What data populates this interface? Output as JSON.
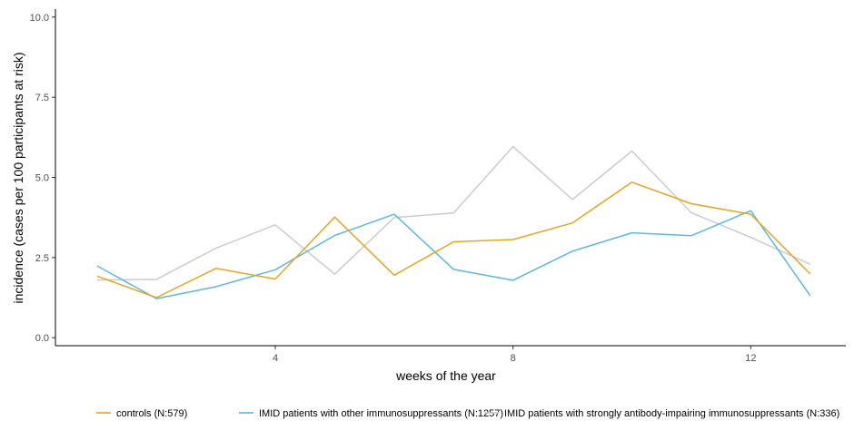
{
  "chart_data": {
    "type": "line",
    "xlabel": "weeks of the year",
    "ylabel": "incidence (cases per 100 participants at risk)",
    "xlim": [
      0.3,
      13.6
    ],
    "ylim": [
      -0.25,
      10.25
    ],
    "x_ticks": [
      4,
      8,
      12
    ],
    "x_tick_labels": [
      "4",
      "8",
      "12"
    ],
    "y_ticks": [
      0.0,
      2.5,
      5.0,
      7.5,
      10.0
    ],
    "y_tick_labels": [
      "0.0",
      "2.5",
      "5.0",
      "7.5",
      "10.0"
    ],
    "grid": false,
    "legend_position": "bottom",
    "x": [
      1,
      2,
      3,
      4,
      5,
      6,
      7,
      8,
      9,
      10,
      11,
      12,
      13
    ],
    "series": [
      {
        "name": "controls (N:579)",
        "color": "#E6A520",
        "values": [
          1.92,
          1.25,
          2.16,
          1.83,
          3.76,
          1.95,
          2.99,
          3.06,
          3.58,
          4.85,
          4.18,
          3.85,
          1.99
        ]
      },
      {
        "name": "IMID patients with other immunosuppressants (N:1257)",
        "color": "#5BB8E0",
        "values": [
          2.24,
          1.22,
          1.59,
          2.12,
          3.19,
          3.85,
          2.13,
          1.79,
          2.7,
          3.27,
          3.18,
          3.96,
          1.31
        ]
      },
      {
        "name": "IMID patients with strongly antibody-impairing immunosuppressants (N:336)",
        "color": "#CCCCCC",
        "values": [
          1.8,
          1.82,
          2.79,
          3.52,
          1.98,
          3.75,
          3.89,
          5.96,
          4.31,
          5.82,
          3.9,
          3.13,
          2.29
        ]
      }
    ]
  }
}
